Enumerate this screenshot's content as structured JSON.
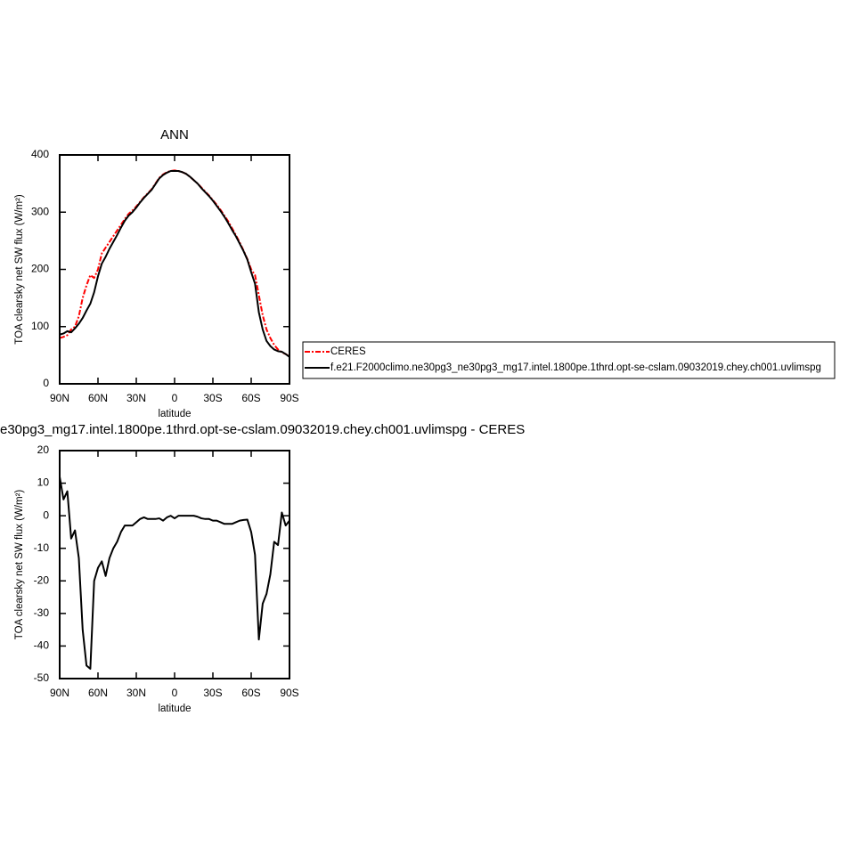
{
  "chart_data": [
    {
      "type": "line",
      "title": "ANN",
      "xlabel": "latitude",
      "ylabel": "TOA clearsky net SW flux (W/m²)",
      "x": [
        90,
        87,
        84,
        81,
        78,
        75,
        72,
        69,
        66,
        63,
        60,
        57,
        54,
        51,
        48,
        45,
        42,
        39,
        36,
        33,
        30,
        27,
        24,
        21,
        18,
        15,
        12,
        9,
        6,
        3,
        0,
        -3,
        -6,
        -9,
        -12,
        -15,
        -18,
        -21,
        -24,
        -27,
        -30,
        -33,
        -36,
        -39,
        -42,
        -45,
        -48,
        -51,
        -54,
        -57,
        -60,
        -63,
        -66,
        -69,
        -72,
        -75,
        -78,
        -81,
        -84,
        -87,
        -90
      ],
      "series": [
        {
          "name": "CERES",
          "color": "#ff0000",
          "line_style": "dashed",
          "values": [
            80,
            82,
            85,
            95,
            100,
            118,
            150,
            172,
            190,
            185,
            200,
            228,
            238,
            248,
            258,
            268,
            278,
            288,
            297,
            303,
            310,
            318,
            326,
            333,
            340,
            350,
            360,
            366,
            370,
            372,
            373,
            372,
            370,
            367,
            362,
            356,
            350,
            343,
            336,
            329,
            321,
            313,
            304,
            294,
            284,
            272,
            260,
            247,
            233,
            218,
            200,
            190,
            155,
            120,
            95,
            80,
            68,
            60,
            55,
            52,
            48
          ]
        },
        {
          "name": "f.e21.F2000climo.ne30pg3_ne30pg3_mg17.intel.1800pe.1thrd.opt-se-cslam.09032019.chey.ch001.uvlimspg",
          "color": "#000000",
          "line_style": "solid",
          "values": [
            86,
            88,
            92,
            90,
            97,
            105,
            115,
            128,
            140,
            160,
            188,
            210,
            222,
            236,
            248,
            260,
            273,
            285,
            294,
            300,
            308,
            317,
            325,
            332,
            339,
            349,
            359,
            365,
            369,
            372,
            372,
            372,
            370,
            367,
            362,
            356,
            350,
            342,
            335,
            328,
            320,
            311,
            302,
            292,
            281,
            269,
            258,
            245,
            232,
            217,
            195,
            175,
            125,
            95,
            75,
            66,
            60,
            57,
            56,
            52,
            47
          ]
        }
      ],
      "xlim": [
        90,
        -90
      ],
      "xticks": [
        {
          "value": 90,
          "label": "90N"
        },
        {
          "value": 60,
          "label": "60N"
        },
        {
          "value": 30,
          "label": "30N"
        },
        0,
        {
          "value": -30,
          "label": "30S"
        },
        {
          "value": -60,
          "label": "60S"
        },
        {
          "value": -90,
          "label": "90S"
        }
      ],
      "ylim": [
        0,
        400
      ],
      "yticks": [
        0,
        100,
        200,
        300,
        400
      ],
      "legend": "right"
    },
    {
      "type": "line",
      "title": "e30pg3_mg17.intel.1800pe.1thrd.opt-se-cslam.09032019.chey.ch001.uvlimspg - CERES",
      "xlabel": "latitude",
      "ylabel": "TOA clearsky net SW flux (W/m²)",
      "x": [
        90,
        87,
        84,
        81,
        78,
        75,
        72,
        69,
        66,
        63,
        60,
        57,
        54,
        51,
        48,
        45,
        42,
        39,
        36,
        33,
        30,
        27,
        24,
        21,
        18,
        15,
        12,
        9,
        6,
        3,
        0,
        -3,
        -6,
        -9,
        -12,
        -15,
        -18,
        -21,
        -24,
        -27,
        -30,
        -33,
        -36,
        -39,
        -42,
        -45,
        -48,
        -51,
        -54,
        -57,
        -60,
        -63,
        -66,
        -69,
        -72,
        -75,
        -78,
        -81,
        -84,
        -87,
        -90
      ],
      "values": [
        12,
        5,
        7.5,
        -7,
        -4.5,
        -13,
        -35,
        -46,
        -47,
        -20,
        -16,
        -14,
        -18.5,
        -13,
        -10,
        -8,
        -5,
        -3,
        -3,
        -3,
        -2,
        -1,
        -0.5,
        -1,
        -1,
        -1,
        -0.8,
        -1.5,
        -0.5,
        0,
        -0.8,
        0,
        0,
        0,
        0,
        0,
        -0.3,
        -0.8,
        -1,
        -1,
        -1.5,
        -1.5,
        -2,
        -2.5,
        -2.5,
        -2.5,
        -2,
        -1.5,
        -1.3,
        -1.2,
        -5,
        -12,
        -38,
        -27,
        -24,
        -18,
        -8,
        -9,
        1,
        -3,
        -1.5
      ],
      "color": "#000000",
      "xlim": [
        90,
        -90
      ],
      "xticks": [
        {
          "value": 90,
          "label": "90N"
        },
        {
          "value": 60,
          "label": "60N"
        },
        {
          "value": 30,
          "label": "30N"
        },
        0,
        {
          "value": -30,
          "label": "30S"
        },
        {
          "value": -60,
          "label": "60S"
        },
        {
          "value": -90,
          "label": "90S"
        }
      ],
      "ylim": [
        -50,
        20
      ],
      "yticks": [
        20,
        10,
        0,
        -10,
        -20,
        -30,
        -40,
        -50
      ]
    }
  ]
}
